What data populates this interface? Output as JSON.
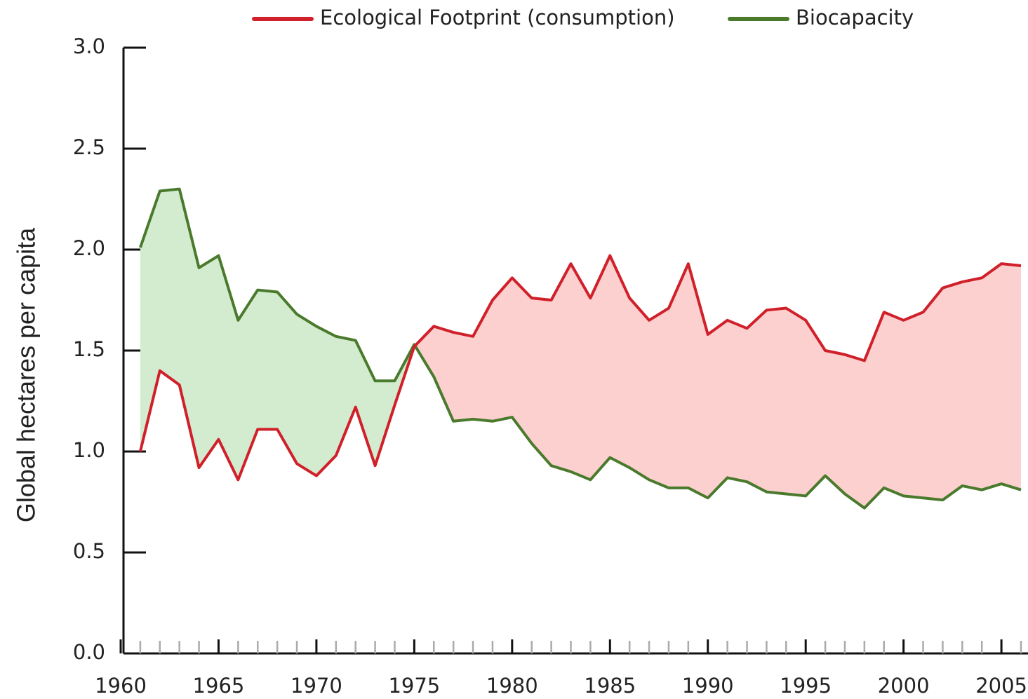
{
  "chart_data": {
    "type": "line",
    "y_label": "Global hectares per capita",
    "x": [
      1961,
      1962,
      1963,
      1964,
      1965,
      1966,
      1967,
      1968,
      1969,
      1970,
      1971,
      1972,
      1973,
      1974,
      1975,
      1976,
      1977,
      1978,
      1979,
      1980,
      1981,
      1982,
      1983,
      1984,
      1985,
      1986,
      1987,
      1988,
      1989,
      1990,
      1991,
      1992,
      1993,
      1994,
      1995,
      1996,
      1997,
      1998,
      1999,
      2000,
      2001,
      2002,
      2003,
      2004,
      2005,
      2006
    ],
    "series": [
      {
        "name": "Ecological Footprint (consumption)",
        "color": "#d0202a",
        "fill": "#fdd0d0",
        "values": [
          1.0,
          1.4,
          1.33,
          0.92,
          1.06,
          0.86,
          1.11,
          1.11,
          0.94,
          0.88,
          0.98,
          1.22,
          0.93,
          1.23,
          1.52,
          1.62,
          1.59,
          1.57,
          1.75,
          1.86,
          1.76,
          1.75,
          1.93,
          1.76,
          1.97,
          1.76,
          1.65,
          1.71,
          1.93,
          1.58,
          1.65,
          1.61,
          1.7,
          1.71,
          1.65,
          1.5,
          1.48,
          1.45,
          1.69,
          1.65,
          1.69,
          1.81,
          1.84,
          1.86,
          1.93,
          1.92
        ]
      },
      {
        "name": "Biocapacity",
        "color": "#4a7a2c",
        "fill": "#d3ecd0",
        "values": [
          2.01,
          2.29,
          2.3,
          1.91,
          1.97,
          1.65,
          1.8,
          1.79,
          1.68,
          1.62,
          1.57,
          1.55,
          1.35,
          1.35,
          1.53,
          1.37,
          1.15,
          1.16,
          1.15,
          1.17,
          1.04,
          0.93,
          0.9,
          0.86,
          0.97,
          0.92,
          0.86,
          0.82,
          0.82,
          0.77,
          0.87,
          0.85,
          0.8,
          0.79,
          0.78,
          0.88,
          0.79,
          0.72,
          0.82,
          0.78,
          0.77,
          0.76,
          0.83,
          0.81,
          0.84,
          0.81
        ]
      }
    ],
    "xlim": [
      1960,
      2006.2
    ],
    "xticks": [
      1960,
      1965,
      1970,
      1975,
      1980,
      1985,
      1990,
      1995,
      2000,
      2005
    ],
    "ylim": [
      0,
      3
    ],
    "yticks": [
      {
        "value": 0,
        "label": "0.0"
      },
      0.5,
      {
        "value": 1,
        "label": "1.0"
      },
      1.5,
      {
        "value": 2,
        "label": "2.0"
      },
      2.5,
      {
        "value": 3,
        "label": "3.0"
      }
    ],
    "legend": "top"
  }
}
